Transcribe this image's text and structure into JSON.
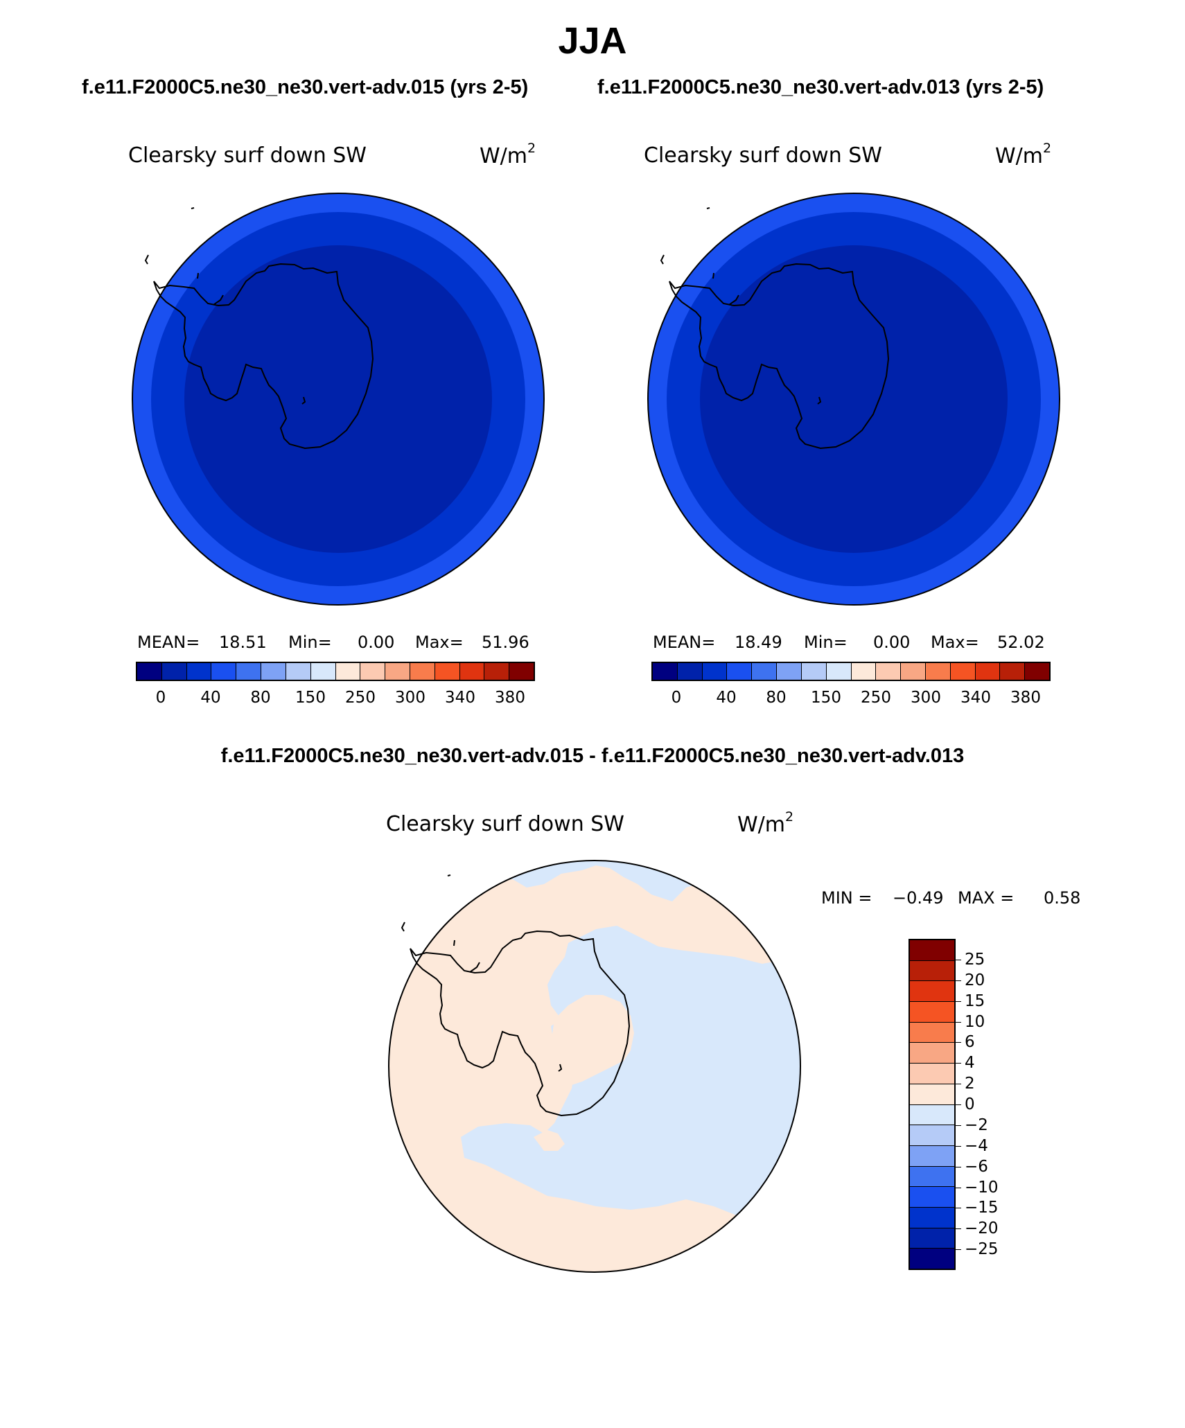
{
  "title": "JJA",
  "case1_title": "f.e11.F2000C5.ne30_ne30.vert-adv.015 (yrs 2-5)",
  "case2_title": "f.e11.F2000C5.ne30_ne30.vert-adv.013 (yrs 2-5)",
  "diff_title": "f.e11.F2000C5.ne30_ne30.vert-adv.015 - f.e11.F2000C5.ne30_ne30.vert-adv.013",
  "panels": [
    {
      "variable": "Clearsky surf down SW",
      "units": "W/m",
      "units_exp": "2",
      "mean_label": "MEAN=",
      "mean": "18.51",
      "min_label": "Min=",
      "min": "0.00",
      "max_label": "Max=",
      "max": "51.96"
    },
    {
      "variable": "Clearsky surf down SW",
      "units": "W/m",
      "units_exp": "2",
      "mean_label": "MEAN=",
      "mean": "18.49",
      "min_label": "Min=",
      "min": "0.00",
      "max_label": "Max=",
      "max": "52.02"
    }
  ],
  "diff_panel": {
    "variable": "Clearsky surf down SW",
    "units": "W/m",
    "units_exp": "2",
    "min_label": "MIN =",
    "min": "−0.49",
    "max_label": "MAX =",
    "max": "0.58"
  },
  "colorbar": {
    "colors": [
      "#000080",
      "#0022aa",
      "#0033cc",
      "#1a50f0",
      "#3e72f0",
      "#7ea2f5",
      "#b5cbf7",
      "#d8e8fb",
      "#fde9da",
      "#fccab2",
      "#f8a784",
      "#f87c4c",
      "#f55423",
      "#e03410",
      "#b82008",
      "#800000"
    ],
    "labels": [
      "0",
      "40",
      "80",
      "150",
      "250",
      "300",
      "340",
      "380"
    ]
  },
  "diff_colorbar": {
    "colors": [
      "#800000",
      "#b82008",
      "#e03410",
      "#f55423",
      "#f87c4c",
      "#f8a784",
      "#fccab2",
      "#fde9da",
      "#d8e8fb",
      "#b5cbf7",
      "#7ea2f5",
      "#3e72f0",
      "#1a50f0",
      "#0033cc",
      "#0022aa",
      "#000080"
    ],
    "labels": [
      "25",
      "20",
      "15",
      "10",
      "6",
      "4",
      "2",
      "0",
      "−2",
      "−4",
      "−6",
      "−10",
      "−15",
      "−20",
      "−25"
    ]
  },
  "map_colors": {
    "outer_ring": "#1a50f0",
    "middle_ring": "#0033cc",
    "inner_disc": "#0022aa",
    "diff_positive": "#fde9da",
    "diff_negative": "#d8e8fb"
  }
}
